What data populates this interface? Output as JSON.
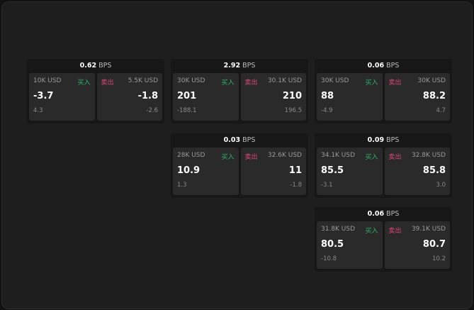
{
  "unit": "BPS",
  "buy_label": "买入",
  "sell_label": "卖出",
  "colors": {
    "buy": "#2fb36b",
    "sell": "#e0457b"
  },
  "cards": [
    {
      "spread": "0.62",
      "bid_size": "10K USD",
      "bid": "-3.7",
      "bid_chg": "4.3",
      "ask_size": "5.5K USD",
      "ask": "-1.8",
      "ask_chg": "-2.6"
    },
    {
      "spread": "2.92",
      "bid_size": "30K USD",
      "bid": "201",
      "bid_chg": "-188.1",
      "ask_size": "30.1K USD",
      "ask": "210",
      "ask_chg": "196.5"
    },
    {
      "spread": "0.06",
      "bid_size": "30K USD",
      "bid": "88",
      "bid_chg": "-4.9",
      "ask_size": "30K USD",
      "ask": "88.2",
      "ask_chg": "4.7"
    },
    {
      "spread": "0.03",
      "bid_size": "28K USD",
      "bid": "10.9",
      "bid_chg": "1.3",
      "ask_size": "32.6K USD",
      "ask": "11",
      "ask_chg": "-1.8"
    },
    {
      "spread": "0.09",
      "bid_size": "34.1K USD",
      "bid": "85.5",
      "bid_chg": "-3.1",
      "ask_size": "32.8K USD",
      "ask": "85.8",
      "ask_chg": "3.0"
    },
    {
      "spread": "0.06",
      "bid_size": "31.8K USD",
      "bid": "80.5",
      "bid_chg": "-10.8",
      "ask_size": "39.1K USD",
      "ask": "80.7",
      "ask_chg": "10.2"
    }
  ]
}
